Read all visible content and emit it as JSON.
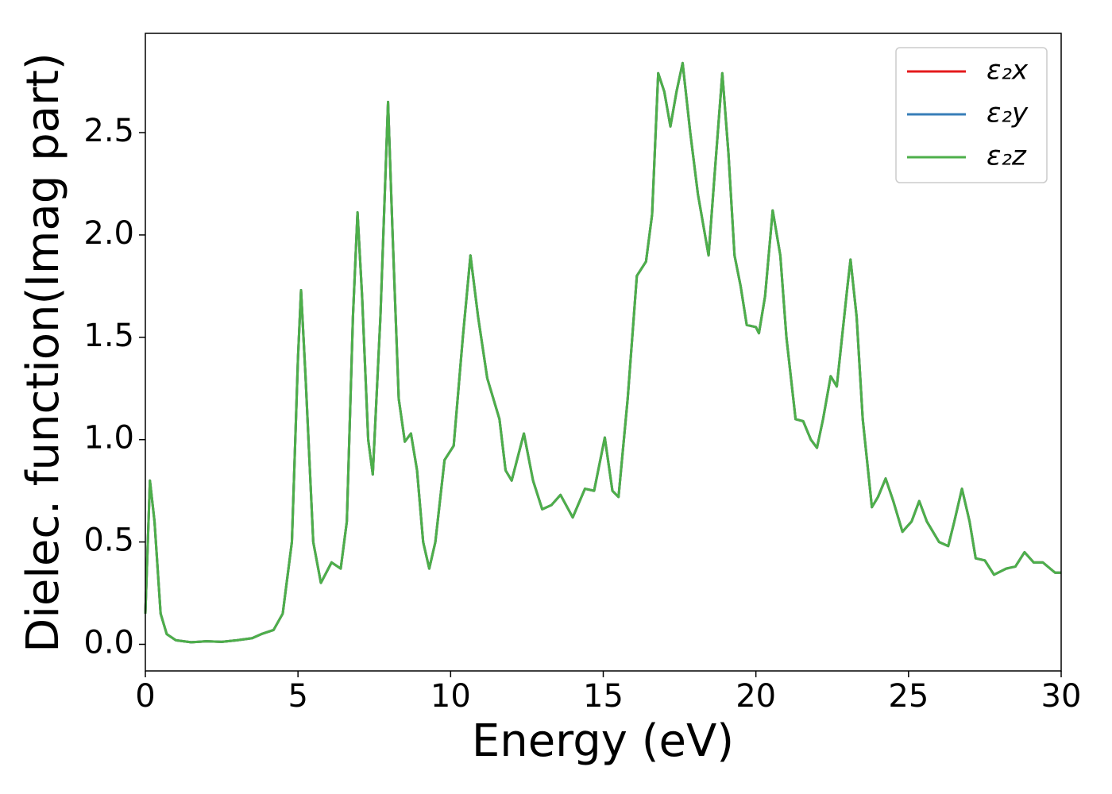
{
  "chart_data": {
    "type": "line",
    "xlabel": "Energy (eV)",
    "ylabel": "Dielec. function(Imag part)",
    "x": [
      0,
      0.15,
      0.3,
      0.5,
      0.7,
      1.0,
      1.5,
      2.0,
      2.5,
      3.0,
      3.5,
      3.8,
      4.2,
      4.5,
      4.8,
      5.0,
      5.1,
      5.25,
      5.5,
      5.75,
      6.1,
      6.4,
      6.6,
      6.8,
      6.95,
      7.1,
      7.3,
      7.45,
      7.7,
      7.95,
      8.1,
      8.3,
      8.5,
      8.7,
      8.9,
      9.1,
      9.3,
      9.5,
      9.8,
      10.1,
      10.4,
      10.65,
      10.9,
      11.2,
      11.6,
      11.8,
      12.0,
      12.4,
      12.7,
      13.0,
      13.3,
      13.6,
      14.0,
      14.4,
      14.7,
      15.05,
      15.3,
      15.5,
      15.8,
      16.1,
      16.4,
      16.6,
      16.8,
      17.0,
      17.2,
      17.4,
      17.6,
      17.85,
      18.1,
      18.45,
      18.65,
      18.9,
      19.1,
      19.3,
      19.5,
      19.7,
      20.0,
      20.1,
      20.3,
      20.55,
      20.8,
      21.0,
      21.3,
      21.55,
      21.8,
      22.0,
      22.2,
      22.45,
      22.65,
      23.0,
      23.1,
      23.3,
      23.5,
      23.8,
      24.0,
      24.25,
      24.5,
      24.8,
      25.1,
      25.35,
      25.6,
      26.0,
      26.3,
      26.5,
      26.75,
      27.0,
      27.2,
      27.5,
      27.8,
      28.2,
      28.5,
      28.8,
      29.1,
      29.4,
      29.8,
      30.0
    ],
    "series": [
      {
        "name": "ε₂x",
        "color": "#e41a1c",
        "values": [
          0.15,
          0.8,
          0.6,
          0.15,
          0.05,
          0.02,
          0.01,
          0.015,
          0.012,
          0.02,
          0.03,
          0.05,
          0.07,
          0.15,
          0.5,
          1.4,
          1.73,
          1.3,
          0.5,
          0.3,
          0.4,
          0.37,
          0.6,
          1.6,
          2.11,
          1.7,
          1.0,
          0.83,
          1.6,
          2.65,
          2.0,
          1.2,
          0.99,
          1.03,
          0.85,
          0.5,
          0.37,
          0.5,
          0.9,
          0.97,
          1.5,
          1.9,
          1.6,
          1.3,
          1.1,
          0.85,
          0.8,
          1.03,
          0.8,
          0.66,
          0.68,
          0.73,
          0.62,
          0.76,
          0.75,
          1.01,
          0.75,
          0.72,
          1.2,
          1.8,
          1.87,
          2.1,
          2.79,
          2.7,
          2.53,
          2.7,
          2.84,
          2.5,
          2.2,
          1.9,
          2.3,
          2.79,
          2.4,
          1.9,
          1.75,
          1.56,
          1.55,
          1.52,
          1.7,
          2.12,
          1.9,
          1.5,
          1.1,
          1.09,
          1.0,
          0.96,
          1.1,
          1.31,
          1.26,
          1.75,
          1.88,
          1.6,
          1.1,
          0.67,
          0.72,
          0.81,
          0.7,
          0.55,
          0.6,
          0.7,
          0.6,
          0.5,
          0.48,
          0.6,
          0.76,
          0.6,
          0.42,
          0.41,
          0.34,
          0.37,
          0.38,
          0.45,
          0.4,
          0.4,
          0.35,
          0.35
        ]
      },
      {
        "name": "ε₂y",
        "color": "#377eb8",
        "values": [
          0.15,
          0.8,
          0.6,
          0.15,
          0.05,
          0.02,
          0.01,
          0.015,
          0.012,
          0.02,
          0.03,
          0.05,
          0.07,
          0.15,
          0.5,
          1.4,
          1.73,
          1.3,
          0.5,
          0.3,
          0.4,
          0.37,
          0.6,
          1.6,
          2.11,
          1.7,
          1.0,
          0.83,
          1.6,
          2.65,
          2.0,
          1.2,
          0.99,
          1.03,
          0.85,
          0.5,
          0.37,
          0.5,
          0.9,
          0.97,
          1.5,
          1.9,
          1.6,
          1.3,
          1.1,
          0.85,
          0.8,
          1.03,
          0.8,
          0.66,
          0.68,
          0.73,
          0.62,
          0.76,
          0.75,
          1.01,
          0.75,
          0.72,
          1.2,
          1.8,
          1.87,
          2.1,
          2.79,
          2.7,
          2.53,
          2.7,
          2.84,
          2.5,
          2.2,
          1.9,
          2.3,
          2.79,
          2.4,
          1.9,
          1.75,
          1.56,
          1.55,
          1.52,
          1.7,
          2.12,
          1.9,
          1.5,
          1.1,
          1.09,
          1.0,
          0.96,
          1.1,
          1.31,
          1.26,
          1.75,
          1.88,
          1.6,
          1.1,
          0.67,
          0.72,
          0.81,
          0.7,
          0.55,
          0.6,
          0.7,
          0.6,
          0.5,
          0.48,
          0.6,
          0.76,
          0.6,
          0.42,
          0.41,
          0.34,
          0.37,
          0.38,
          0.45,
          0.4,
          0.4,
          0.35,
          0.35
        ]
      },
      {
        "name": "ε₂z",
        "color": "#4daf4a",
        "values": [
          0.15,
          0.8,
          0.6,
          0.15,
          0.05,
          0.02,
          0.01,
          0.015,
          0.012,
          0.02,
          0.03,
          0.05,
          0.07,
          0.15,
          0.5,
          1.4,
          1.73,
          1.3,
          0.5,
          0.3,
          0.4,
          0.37,
          0.6,
          1.6,
          2.11,
          1.7,
          1.0,
          0.83,
          1.6,
          2.65,
          2.0,
          1.2,
          0.99,
          1.03,
          0.85,
          0.5,
          0.37,
          0.5,
          0.9,
          0.97,
          1.5,
          1.9,
          1.6,
          1.3,
          1.1,
          0.85,
          0.8,
          1.03,
          0.8,
          0.66,
          0.68,
          0.73,
          0.62,
          0.76,
          0.75,
          1.01,
          0.75,
          0.72,
          1.2,
          1.8,
          1.87,
          2.1,
          2.79,
          2.7,
          2.53,
          2.7,
          2.84,
          2.5,
          2.2,
          1.9,
          2.3,
          2.79,
          2.4,
          1.9,
          1.75,
          1.56,
          1.55,
          1.52,
          1.7,
          2.12,
          1.9,
          1.5,
          1.1,
          1.09,
          1.0,
          0.96,
          1.1,
          1.31,
          1.26,
          1.75,
          1.88,
          1.6,
          1.1,
          0.67,
          0.72,
          0.81,
          0.7,
          0.55,
          0.6,
          0.7,
          0.6,
          0.5,
          0.48,
          0.6,
          0.76,
          0.6,
          0.42,
          0.41,
          0.34,
          0.37,
          0.38,
          0.45,
          0.4,
          0.4,
          0.35,
          0.35
        ]
      }
    ],
    "xlim": [
      0,
      30
    ],
    "xticks": [
      0,
      5,
      10,
      15,
      20,
      25,
      30
    ],
    "ylim": [
      -0.13,
      2.985
    ],
    "yticks": [
      {
        "value": 0,
        "label": "0.0"
      },
      0.5,
      {
        "value": 1,
        "label": "1.0"
      },
      1.5,
      {
        "value": 2,
        "label": "2.0"
      },
      2.5
    ],
    "grid": false,
    "legend": "upper right"
  }
}
